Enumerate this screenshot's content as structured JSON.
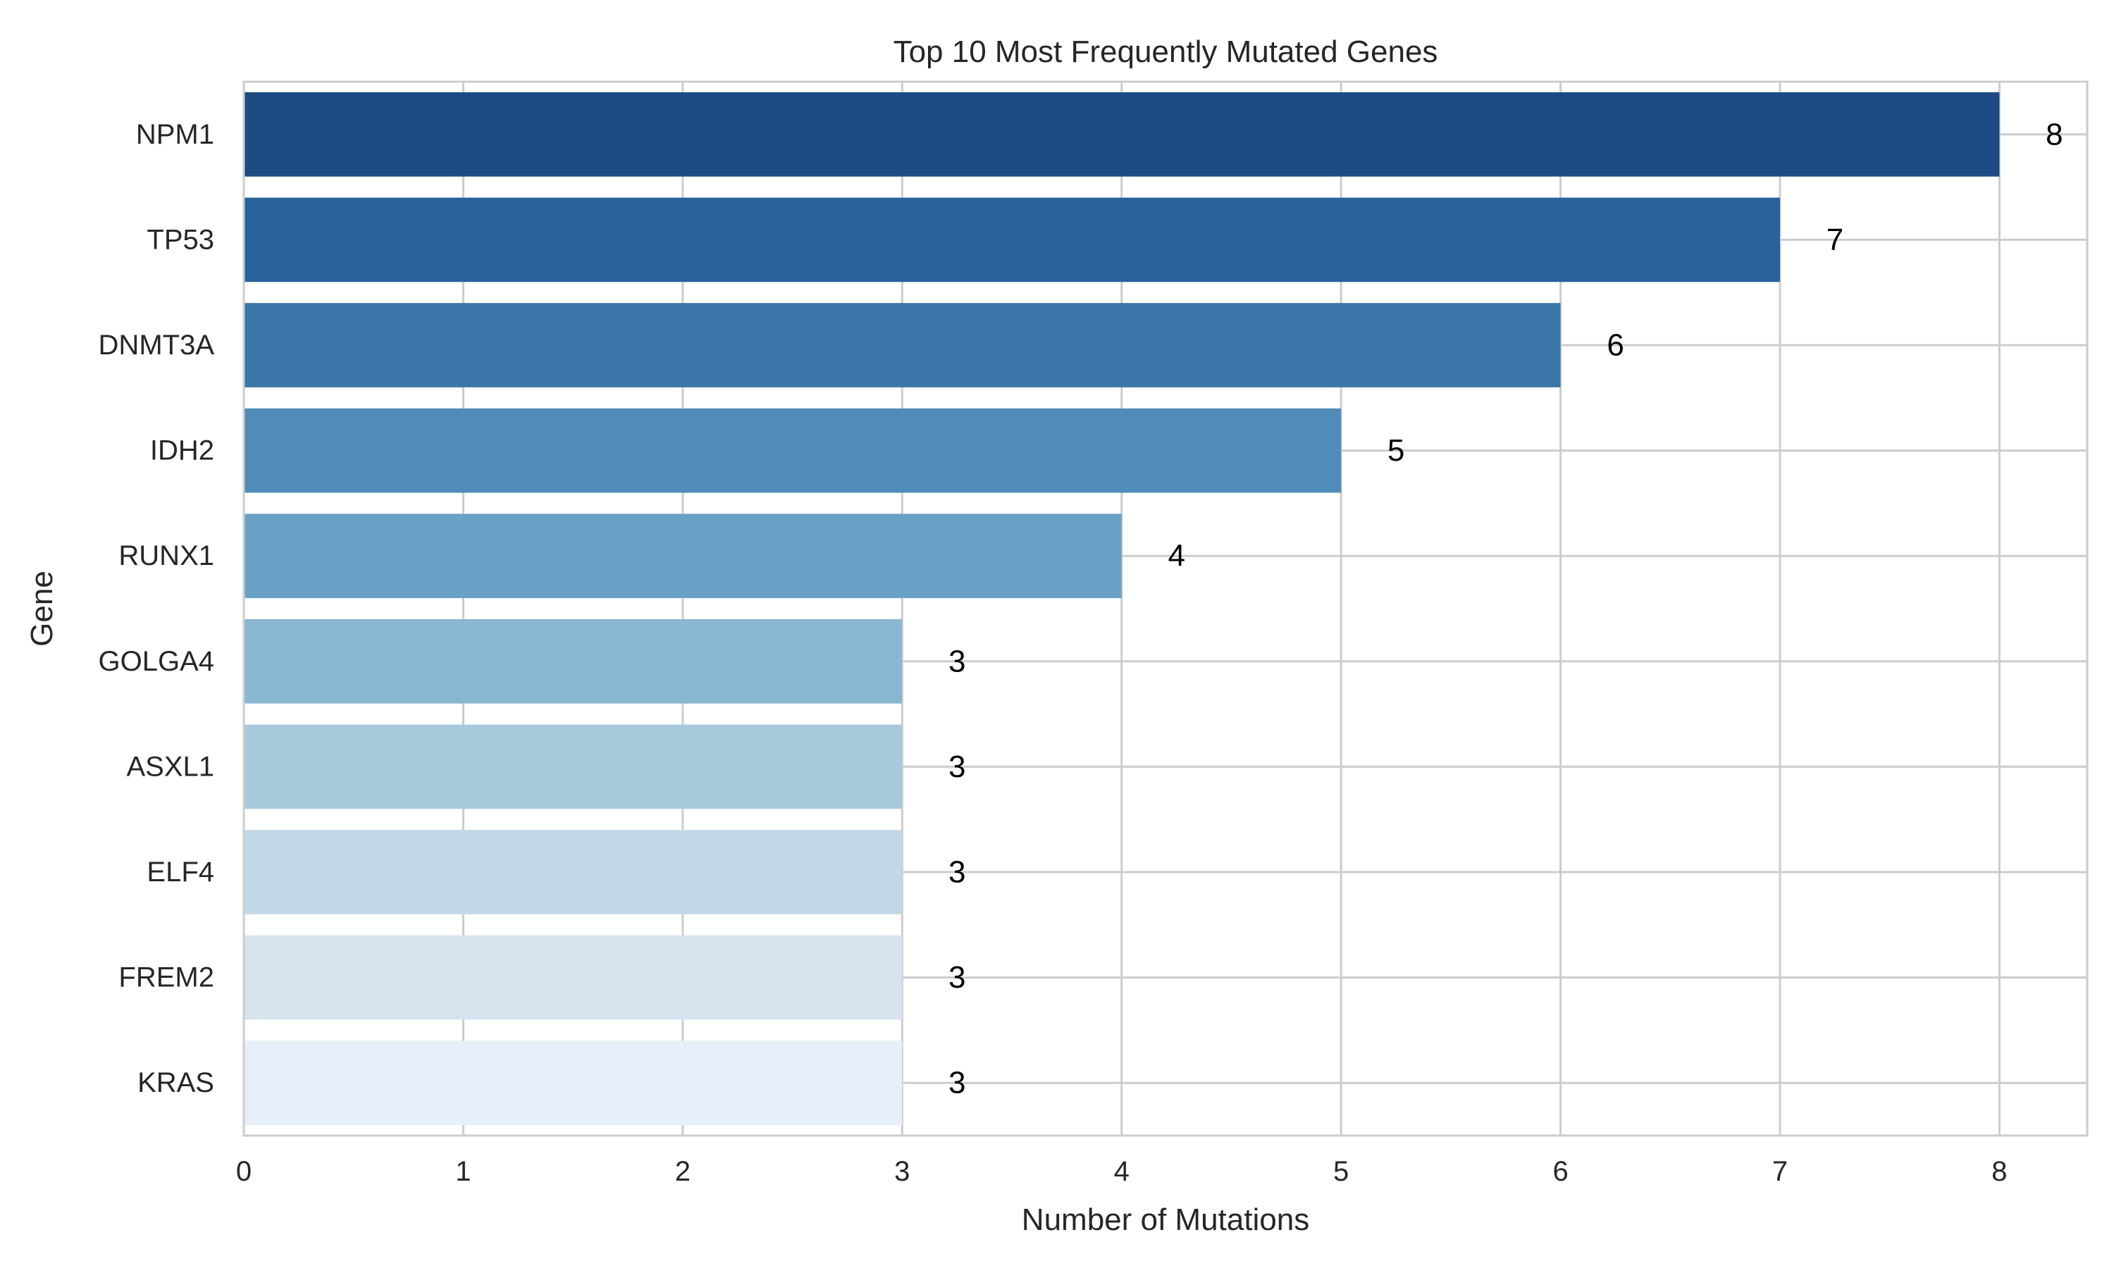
{
  "chart_data": {
    "type": "bar",
    "orientation": "horizontal",
    "title": "Top 10 Most Frequently Mutated Genes",
    "xlabel": "Number of Mutations",
    "ylabel": "Gene",
    "categories": [
      "NPM1",
      "TP53",
      "DNMT3A",
      "IDH2",
      "RUNX1",
      "GOLGA4",
      "ASXL1",
      "ELF4",
      "FREM2",
      "KRAS"
    ],
    "values": [
      8,
      7,
      6,
      5,
      4,
      3,
      3,
      3,
      3,
      3
    ],
    "data_labels": [
      "8",
      "7",
      "6",
      "5",
      "4",
      "3",
      "3",
      "3",
      "3",
      "3"
    ],
    "xlim": [
      0,
      8.4
    ],
    "xticks": [
      0,
      1,
      2,
      3,
      4,
      5,
      6,
      7,
      8
    ],
    "xtick_labels": [
      "0",
      "1",
      "2",
      "3",
      "4",
      "5",
      "6",
      "7",
      "8"
    ],
    "grid": true,
    "colors": [
      "#1b4b82",
      "#27629a",
      "#3a76a8",
      "#508cb7",
      "#6aa1c6",
      "#89b6d0",
      "#a8c9dc",
      "#c3d8e7",
      "#d7e4f0",
      "#e7f0f8"
    ],
    "grid_color": "#cccccc",
    "frame_color": "#cccccc"
  }
}
